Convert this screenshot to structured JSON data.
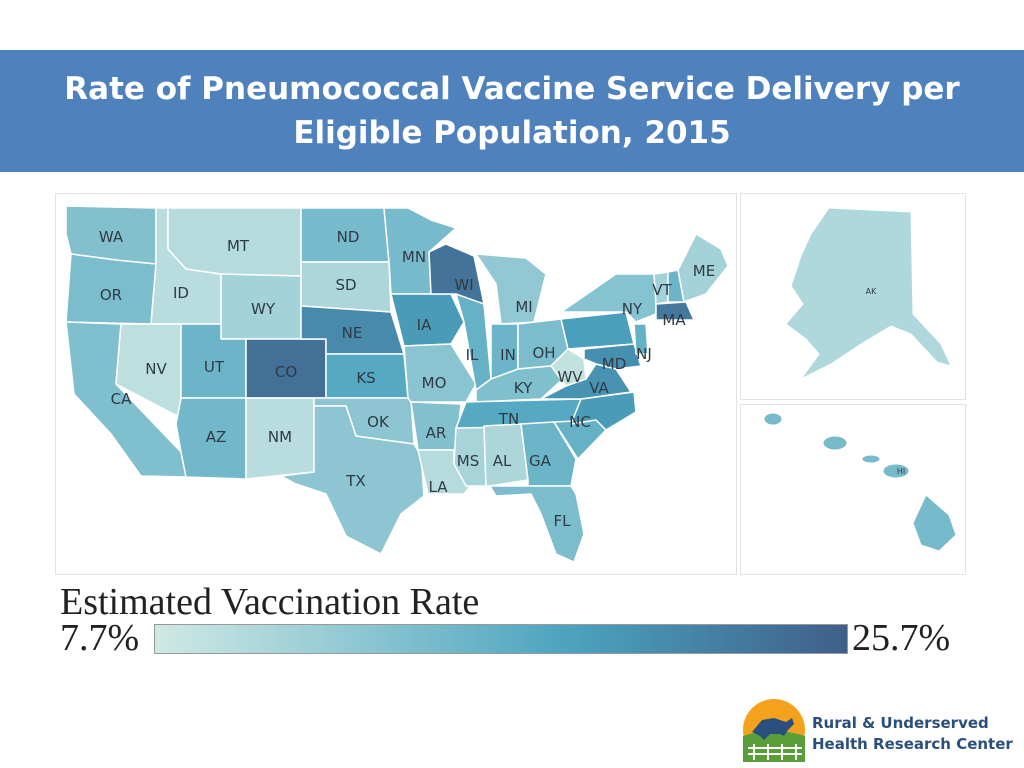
{
  "title": "Rate of Pneumococcal Vaccine Service Delivery per Eligible Population, 2015",
  "colors": {
    "banner": "#4f81bd",
    "scale_low": "#cfe9e4",
    "scale_mid": "#4ba3bf",
    "scale_high": "#3f5f89",
    "border": "#ffffff"
  },
  "legend": {
    "title": "Estimated Vaccination Rate",
    "min_label": "7.7%",
    "max_label": "25.7%",
    "min": 7.7,
    "max": 25.7
  },
  "states": {
    "WA": 0.35,
    "OR": 0.38,
    "CA": 0.36,
    "ID": 0.1,
    "NV": 0.08,
    "MT": 0.12,
    "WY": 0.2,
    "UT": 0.45,
    "AZ": 0.42,
    "CO": 0.9,
    "NM": 0.1,
    "ND": 0.4,
    "SD": 0.16,
    "NE": 0.75,
    "KS": 0.55,
    "OK": 0.3,
    "TX": 0.3,
    "MN": 0.4,
    "IA": 0.65,
    "MO": 0.32,
    "AR": 0.35,
    "LA": 0.12,
    "WI": 0.88,
    "IL": 0.48,
    "MS": 0.18,
    "MI": 0.28,
    "IN": 0.45,
    "KY": 0.36,
    "TN": 0.55,
    "AL": 0.16,
    "GA": 0.45,
    "FL": 0.38,
    "OH": 0.38,
    "WV": 0.06,
    "VA": 0.7,
    "NC": 0.65,
    "SC": 0.48,
    "NY": 0.33,
    "PA": 0.62,
    "MD": 0.72,
    "NJ": 0.48,
    "VT": 0.2,
    "NH": 0.45,
    "ME": 0.2,
    "MA": 0.85,
    "AK": 0.15,
    "HI": 0.4
  },
  "labels": {
    "WA": "WA",
    "OR": "OR",
    "CA": "CA",
    "ID": "ID",
    "NV": "NV",
    "MT": "MT",
    "WY": "WY",
    "UT": "UT",
    "AZ": "AZ",
    "CO": "CO",
    "NM": "NM",
    "ND": "ND",
    "SD": "SD",
    "NE": "NE",
    "KS": "KS",
    "OK": "OK",
    "TX": "TX",
    "MN": "MN",
    "IA": "IA",
    "MO": "MO",
    "AR": "AR",
    "LA": "LA",
    "WI": "WI",
    "IL": "IL",
    "MS": "MS",
    "MI": "MI",
    "IN": "IN",
    "KY": "KY",
    "TN": "TN",
    "AL": "AL",
    "GA": "GA",
    "FL": "FL",
    "OH": "OH",
    "WV": "WV",
    "VA": "VA",
    "NC": "NC",
    "NY": "NY",
    "MD": "MD",
    "NJ": "NJ",
    "VT": "VT",
    "ME": "ME",
    "MA": "MA",
    "AK": "AK",
    "HI": "HI"
  },
  "logo": {
    "line1": "Rural & Underserved",
    "line2": "Health Research Center"
  }
}
